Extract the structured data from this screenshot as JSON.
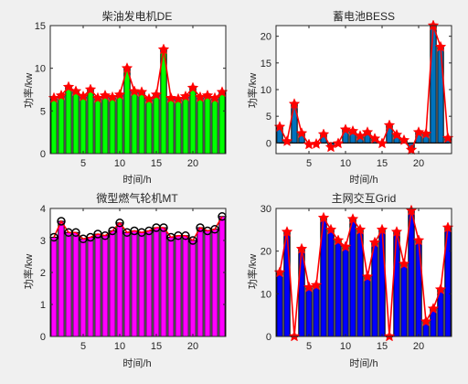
{
  "colors": {
    "figure_bg": "#f0f0f0",
    "axes_bg": "#ffffff",
    "line": "#ff0000",
    "marker_star": "#ff0000",
    "marker_circle": "#000000"
  },
  "chart_data": [
    {
      "type": "bar",
      "title": "柴油发电机DE",
      "xlabel": "时间/h",
      "ylabel": "功率/kw",
      "bar_color": "#00ff00",
      "marker": "star",
      "x": [
        1,
        2,
        3,
        4,
        5,
        6,
        7,
        8,
        9,
        10,
        11,
        12,
        13,
        14,
        15,
        16,
        17,
        18,
        19,
        20,
        21,
        22,
        23,
        24
      ],
      "values": [
        6.5,
        6.8,
        7.8,
        7.3,
        6.7,
        7.5,
        6.5,
        6.8,
        6.6,
        6.9,
        10.0,
        7.3,
        7.2,
        6.4,
        6.9,
        12.2,
        6.5,
        6.4,
        6.7,
        7.7,
        6.6,
        6.8,
        6.5,
        7.2
      ],
      "xlim": [
        0.5,
        24.5
      ],
      "ylim": [
        0,
        15
      ],
      "xticks": [
        5,
        10,
        15,
        20
      ],
      "yticks": [
        0,
        5,
        10,
        15
      ],
      "grid": false
    },
    {
      "type": "bar",
      "title": "蓄电池BESS",
      "xlabel": "时间/h",
      "ylabel": "功率/kw",
      "bar_color": "#0072bd",
      "marker": "star",
      "x": [
        1,
        2,
        3,
        4,
        5,
        6,
        7,
        8,
        9,
        10,
        11,
        12,
        13,
        14,
        15,
        16,
        17,
        18,
        19,
        20,
        21,
        22,
        23,
        24
      ],
      "values": [
        3.0,
        0.3,
        7.3,
        1.8,
        -0.3,
        -0.2,
        1.6,
        -0.8,
        -0.1,
        2.5,
        2.2,
        1.3,
        2.0,
        0.8,
        -0.1,
        3.3,
        1.5,
        0.5,
        -1.3,
        2.0,
        1.7,
        22.0,
        18.0,
        0.9
      ],
      "xlim": [
        0.5,
        24.5
      ],
      "ylim": [
        -2,
        22
      ],
      "xticks": [
        5,
        10,
        15,
        20
      ],
      "yticks": [
        0,
        5,
        10,
        15,
        20
      ],
      "grid": false
    },
    {
      "type": "bar",
      "title": "微型燃气轮机MT",
      "xlabel": "时间/h",
      "ylabel": "功率/kw",
      "bar_color": "#ff00ff",
      "marker": "circle",
      "x": [
        1,
        2,
        3,
        4,
        5,
        6,
        7,
        8,
        9,
        10,
        11,
        12,
        13,
        14,
        15,
        16,
        17,
        18,
        19,
        20,
        21,
        22,
        23,
        24
      ],
      "values": [
        3.1,
        3.6,
        3.25,
        3.25,
        3.05,
        3.1,
        3.2,
        3.15,
        3.3,
        3.55,
        3.25,
        3.3,
        3.25,
        3.3,
        3.4,
        3.4,
        3.1,
        3.15,
        3.15,
        3.0,
        3.4,
        3.3,
        3.35,
        3.75
      ],
      "xlim": [
        0.5,
        24.5
      ],
      "ylim": [
        0,
        4
      ],
      "xticks": [
        5,
        10,
        15,
        20
      ],
      "yticks": [
        0,
        1,
        2,
        3,
        4
      ],
      "grid": false
    },
    {
      "type": "bar",
      "title": "主网交互Grid",
      "xlabel": "时间/h",
      "ylabel": "功率/kw",
      "bar_color": "#0000ff",
      "marker": "star",
      "x": [
        1,
        2,
        3,
        4,
        5,
        6,
        7,
        8,
        9,
        10,
        11,
        12,
        13,
        14,
        15,
        16,
        17,
        18,
        19,
        20,
        21,
        22,
        23,
        24
      ],
      "values": [
        15.0,
        24.5,
        0.0,
        20.5,
        11.5,
        12.0,
        27.8,
        25.0,
        22.5,
        21.0,
        27.5,
        25.0,
        14.0,
        22.0,
        25.0,
        0.0,
        24.5,
        17.0,
        29.5,
        22.5,
        3.5,
        6.5,
        11.0,
        25.5
      ],
      "xlim": [
        0.5,
        24.5
      ],
      "ylim": [
        0,
        30
      ],
      "xticks": [
        5,
        10,
        15,
        20
      ],
      "yticks": [
        0,
        10,
        20,
        30
      ],
      "grid": false
    }
  ]
}
